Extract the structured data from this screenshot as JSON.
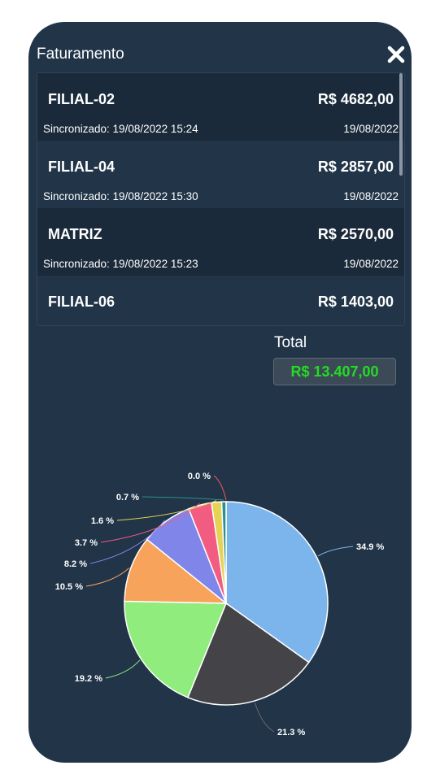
{
  "title": "Faturamento",
  "list": [
    {
      "name": "FILIAL-02",
      "value": "R$ 4682,00",
      "sync": "Sincronizado: 19/08/2022 15:24",
      "date": "19/08/2022"
    },
    {
      "name": "FILIAL-04",
      "value": "R$ 2857,00",
      "sync": "Sincronizado: 19/08/2022 15:30",
      "date": "19/08/2022"
    },
    {
      "name": "MATRIZ",
      "value": "R$ 2570,00",
      "sync": "Sincronizado: 19/08/2022 15:23",
      "date": "19/08/2022"
    },
    {
      "name": "FILIAL-06",
      "value": "R$ 1403,00",
      "sync": "",
      "date": ""
    }
  ],
  "total": {
    "label": "Total",
    "value": "R$ 13.407,00"
  },
  "colors": {
    "background": "#213448",
    "row_alt": "#1b2a3a",
    "total_text": "#22dd22"
  },
  "chart_data": {
    "type": "pie",
    "slices": [
      {
        "label": "34.9 %",
        "value": 34.9,
        "color": "#7cb5ec"
      },
      {
        "label": "21.3 %",
        "value": 21.3,
        "color": "#434348"
      },
      {
        "label": "19.2 %",
        "value": 19.2,
        "color": "#90ed7d"
      },
      {
        "label": "10.5 %",
        "value": 10.5,
        "color": "#f7a35c"
      },
      {
        "label": "8.2 %",
        "value": 8.2,
        "color": "#8085e9"
      },
      {
        "label": "3.7 %",
        "value": 3.7,
        "color": "#f15c80"
      },
      {
        "label": "1.6 %",
        "value": 1.6,
        "color": "#e4d354"
      },
      {
        "label": "0.7 %",
        "value": 0.7,
        "color": "#2b908f"
      },
      {
        "label": "0.0 %",
        "value": 0.0,
        "color": "#f45b5b"
      }
    ]
  }
}
